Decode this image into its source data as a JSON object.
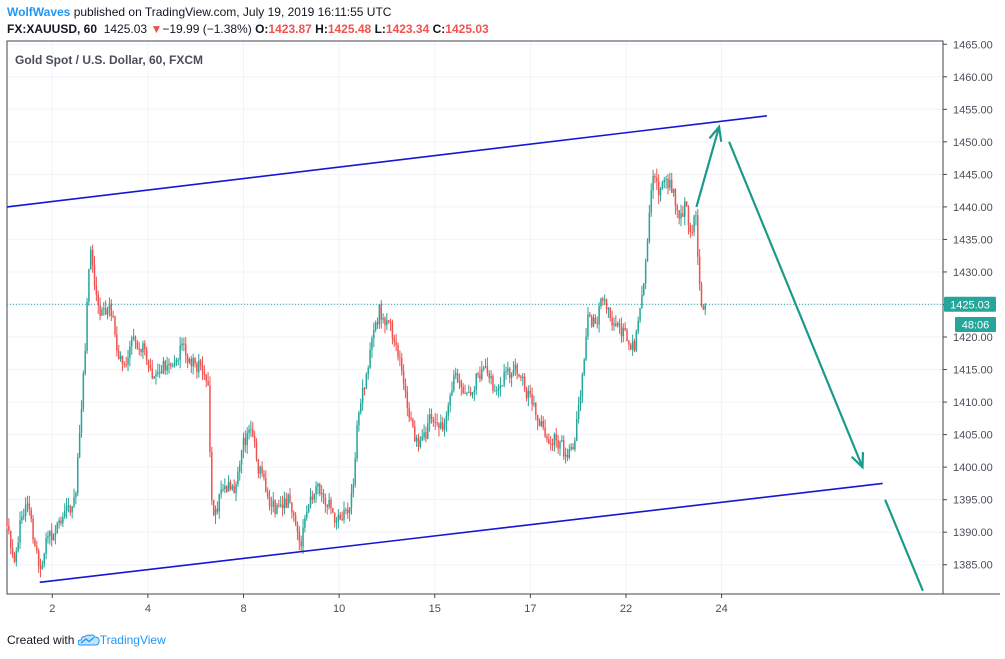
{
  "header": {
    "author": "WolfWaves",
    "published_text": "published on TradingView.com, July 19, 2019 16:11:55 UTC",
    "symbol": "FX:XAUUSD, 60",
    "last": "1425.03",
    "change_arrow": "▼",
    "change": "−19.99 (−1.38%)",
    "open_label": "O:",
    "open": "1423.87",
    "high_label": "H:",
    "high": "1425.48",
    "low_label": "L:",
    "low": "1423.34",
    "close_label": "C:",
    "close": "1425.03"
  },
  "footer": {
    "created_with": "Created with",
    "brand": "TradingView",
    "logo_icon": "tradingview-cloud-icon"
  },
  "colors": {
    "up": "#26a69a",
    "down": "#ef5350",
    "channel": "#1515d6",
    "arrow": "#1a9a8a",
    "price_tag": "#26a69a"
  },
  "chart_data": {
    "type": "candlestick",
    "title": "Gold Spot / U.S. Dollar, 60, FXCM",
    "y_ticks": [
      1385,
      1390,
      1395,
      1400,
      1405,
      1410,
      1415,
      1420,
      1425,
      1430,
      1435,
      1440,
      1445,
      1450,
      1455,
      1460,
      1465
    ],
    "y_tick_labels": [
      "1385.00",
      "1390.00",
      "1395.00",
      "1400.00",
      "1405.00",
      "1410.00",
      "1415.00",
      "1420.00",
      "1425.00",
      "1430.00",
      "1435.00",
      "1440.00",
      "1445.00",
      "1450.00",
      "1455.00",
      "1460.00",
      "1465.00"
    ],
    "ylim": [
      1380.5,
      1465.5
    ],
    "x_ticks": [
      {
        "label": "2",
        "pos": 1.0
      },
      {
        "label": "4",
        "pos": 2.9
      },
      {
        "label": "8",
        "pos": 4.8
      },
      {
        "label": "10",
        "pos": 6.7
      },
      {
        "label": "15",
        "pos": 8.6
      },
      {
        "label": "17",
        "pos": 10.5
      },
      {
        "label": "22",
        "pos": 12.4
      },
      {
        "label": "24",
        "pos": 14.3
      }
    ],
    "xlim": [
      0.1,
      18.7
    ],
    "last_price": {
      "value": 1425.03,
      "label": "1425.03",
      "countdown": "48:06"
    },
    "anchors": [
      {
        "t": 0.1,
        "p": 1391.5
      },
      {
        "t": 0.25,
        "p": 1385.0
      },
      {
        "t": 0.4,
        "p": 1393.0
      },
      {
        "t": 0.5,
        "p": 1394.0
      },
      {
        "t": 0.62,
        "p": 1390.0
      },
      {
        "t": 0.75,
        "p": 1384.5
      },
      {
        "t": 0.9,
        "p": 1389.0
      },
      {
        "t": 1.1,
        "p": 1391.0
      },
      {
        "t": 1.3,
        "p": 1394.0
      },
      {
        "t": 1.45,
        "p": 1394.5
      },
      {
        "t": 1.55,
        "p": 1405.0
      },
      {
        "t": 1.65,
        "p": 1418.0
      },
      {
        "t": 1.75,
        "p": 1435.0
      },
      {
        "t": 1.85,
        "p": 1427.0
      },
      {
        "t": 2.0,
        "p": 1423.0
      },
      {
        "t": 2.15,
        "p": 1425.0
      },
      {
        "t": 2.3,
        "p": 1418.0
      },
      {
        "t": 2.45,
        "p": 1416.5
      },
      {
        "t": 2.6,
        "p": 1420.0
      },
      {
        "t": 2.8,
        "p": 1418.0
      },
      {
        "t": 3.0,
        "p": 1413.0
      },
      {
        "t": 3.2,
        "p": 1416.0
      },
      {
        "t": 3.4,
        "p": 1415.0
      },
      {
        "t": 3.55,
        "p": 1418.5
      },
      {
        "t": 3.75,
        "p": 1416.0
      },
      {
        "t": 3.95,
        "p": 1415.0
      },
      {
        "t": 4.1,
        "p": 1413.0
      },
      {
        "t": 4.15,
        "p": 1395.0
      },
      {
        "t": 4.25,
        "p": 1393.0
      },
      {
        "t": 4.4,
        "p": 1398.0
      },
      {
        "t": 4.6,
        "p": 1396.0
      },
      {
        "t": 4.8,
        "p": 1404.0
      },
      {
        "t": 4.95,
        "p": 1405.5
      },
      {
        "t": 5.1,
        "p": 1400.0
      },
      {
        "t": 5.3,
        "p": 1395.0
      },
      {
        "t": 5.5,
        "p": 1393.0
      },
      {
        "t": 5.7,
        "p": 1395.0
      },
      {
        "t": 5.85,
        "p": 1390.0
      },
      {
        "t": 5.92,
        "p": 1388.0
      },
      {
        "t": 6.05,
        "p": 1393.0
      },
      {
        "t": 6.25,
        "p": 1396.5
      },
      {
        "t": 6.45,
        "p": 1395.0
      },
      {
        "t": 6.6,
        "p": 1392.0
      },
      {
        "t": 6.8,
        "p": 1393.0
      },
      {
        "t": 6.95,
        "p": 1395.0
      },
      {
        "t": 7.05,
        "p": 1405.0
      },
      {
        "t": 7.2,
        "p": 1413.0
      },
      {
        "t": 7.35,
        "p": 1419.0
      },
      {
        "t": 7.5,
        "p": 1424.0
      },
      {
        "t": 7.65,
        "p": 1422.5
      },
      {
        "t": 7.8,
        "p": 1420.0
      },
      {
        "t": 7.95,
        "p": 1414.0
      },
      {
        "t": 8.1,
        "p": 1407.0
      },
      {
        "t": 8.25,
        "p": 1404.0
      },
      {
        "t": 8.4,
        "p": 1405.0
      },
      {
        "t": 8.55,
        "p": 1408.0
      },
      {
        "t": 8.7,
        "p": 1406.0
      },
      {
        "t": 8.85,
        "p": 1408.0
      },
      {
        "t": 9.0,
        "p": 1415.0
      },
      {
        "t": 9.2,
        "p": 1410.5
      },
      {
        "t": 9.4,
        "p": 1413.0
      },
      {
        "t": 9.6,
        "p": 1415.0
      },
      {
        "t": 9.8,
        "p": 1412.0
      },
      {
        "t": 10.0,
        "p": 1414.0
      },
      {
        "t": 10.2,
        "p": 1415.0
      },
      {
        "t": 10.4,
        "p": 1412.0
      },
      {
        "t": 10.6,
        "p": 1409.0
      },
      {
        "t": 10.8,
        "p": 1404.0
      },
      {
        "t": 11.0,
        "p": 1404.5
      },
      {
        "t": 11.15,
        "p": 1403.0
      },
      {
        "t": 11.25,
        "p": 1401.5
      },
      {
        "t": 11.4,
        "p": 1405.0
      },
      {
        "t": 11.55,
        "p": 1416.0
      },
      {
        "t": 11.65,
        "p": 1423.0
      },
      {
        "t": 11.8,
        "p": 1422.0
      },
      {
        "t": 11.95,
        "p": 1426.0
      },
      {
        "t": 12.1,
        "p": 1423.0
      },
      {
        "t": 12.25,
        "p": 1421.0
      },
      {
        "t": 12.4,
        "p": 1420.0
      },
      {
        "t": 12.55,
        "p": 1418.0
      },
      {
        "t": 12.65,
        "p": 1422.0
      },
      {
        "t": 12.75,
        "p": 1427.0
      },
      {
        "t": 12.85,
        "p": 1437.0
      },
      {
        "t": 12.95,
        "p": 1446.0
      },
      {
        "t": 13.05,
        "p": 1443.0
      },
      {
        "t": 13.15,
        "p": 1445.5
      },
      {
        "t": 13.3,
        "p": 1443.0
      },
      {
        "t": 13.45,
        "p": 1439.0
      },
      {
        "t": 13.6,
        "p": 1440.0
      },
      {
        "t": 13.7,
        "p": 1436.0
      },
      {
        "t": 13.78,
        "p": 1440.5
      },
      {
        "t": 13.85,
        "p": 1428.0
      },
      {
        "t": 13.92,
        "p": 1424.0
      },
      {
        "t": 14.0,
        "p": 1425.03
      }
    ],
    "channel_lines": [
      {
        "x1": 0.1,
        "p1": 1440.0,
        "x2": 15.2,
        "p2": 1454.0
      },
      {
        "x1": 0.75,
        "p1": 1382.3,
        "x2": 17.5,
        "p2": 1397.5
      }
    ],
    "arrows": [
      {
        "points": [
          [
            13.8,
            1440.0
          ],
          [
            14.25,
            1452.3
          ]
        ],
        "head": true
      },
      {
        "points": [
          [
            14.45,
            1450.0
          ],
          [
            17.1,
            1400.0
          ]
        ],
        "head": true
      },
      {
        "points": [
          [
            17.55,
            1395.0
          ],
          [
            18.3,
            1381.0
          ]
        ],
        "head": false
      }
    ]
  }
}
